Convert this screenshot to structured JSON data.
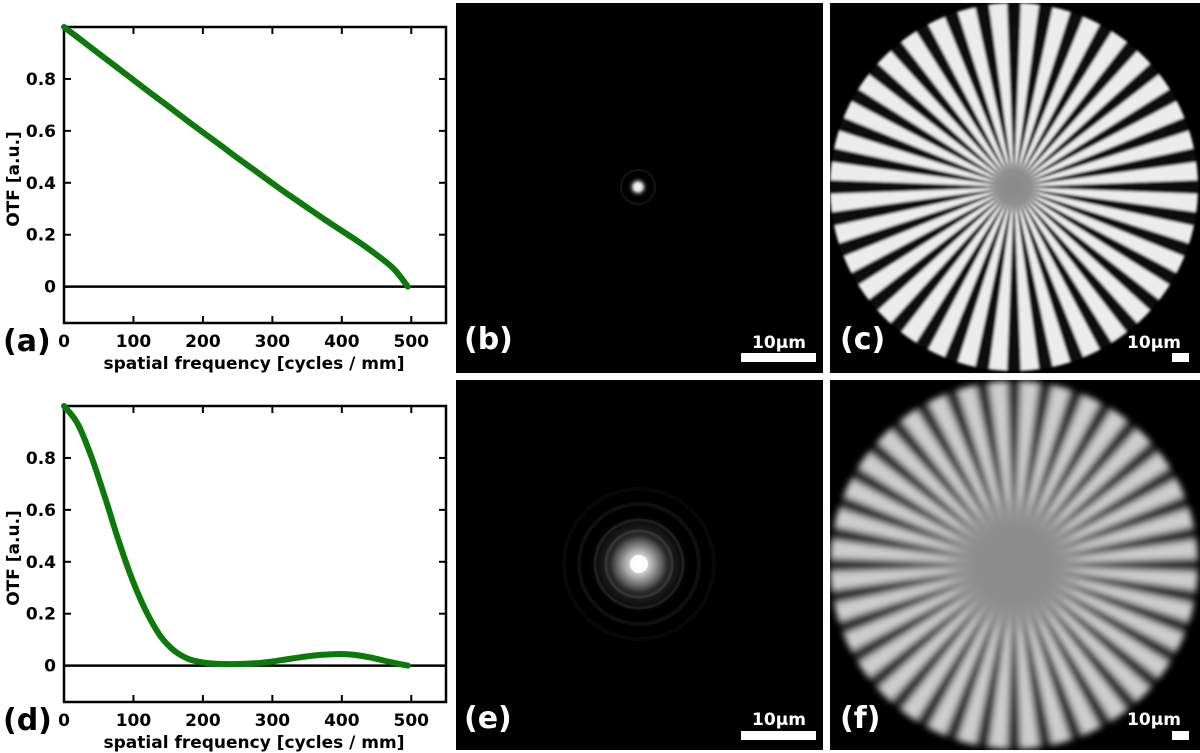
{
  "chart_data": [
    {
      "type": "line",
      "panel_label": "(a)",
      "xlabel": "spatial frequency [cycles / mm]",
      "ylabel": "OTF [a.u.]",
      "xlim": [
        0,
        550
      ],
      "ylim": [
        -0.14,
        1.0
      ],
      "xticks": [
        "0",
        "100",
        "200",
        "300",
        "400",
        "500"
      ],
      "yticks": [
        "0",
        "0.2",
        "0.4",
        "0.6",
        "0.8"
      ],
      "grid": false,
      "series": [
        {
          "color": "#0b7a0b",
          "x": [
            0,
            25,
            50,
            75,
            100,
            125,
            150,
            175,
            200,
            225,
            250,
            275,
            300,
            325,
            350,
            375,
            400,
            425,
            450,
            475,
            495
          ],
          "y": [
            1.0,
            0.949,
            0.898,
            0.847,
            0.796,
            0.745,
            0.695,
            0.644,
            0.594,
            0.545,
            0.495,
            0.447,
            0.398,
            0.351,
            0.305,
            0.259,
            0.215,
            0.171,
            0.123,
            0.068,
            0.0
          ]
        }
      ]
    },
    {
      "type": "line",
      "panel_label": "(d)",
      "xlabel": "spatial frequency [cycles / mm]",
      "ylabel": "OTF [a.u.]",
      "xlim": [
        0,
        550
      ],
      "ylim": [
        -0.14,
        1.0
      ],
      "xticks": [
        "0",
        "100",
        "200",
        "300",
        "400",
        "500"
      ],
      "yticks": [
        "0",
        "0.2",
        "0.4",
        "0.6",
        "0.8"
      ],
      "grid": false,
      "series": [
        {
          "color": "#0b7a0b",
          "x": [
            0,
            20,
            40,
            60,
            80,
            100,
            120,
            140,
            160,
            180,
            200,
            220,
            240,
            260,
            280,
            300,
            320,
            340,
            360,
            380,
            400,
            420,
            440,
            460,
            480,
            495
          ],
          "y": [
            1.0,
            0.93,
            0.8,
            0.64,
            0.47,
            0.32,
            0.2,
            0.11,
            0.055,
            0.025,
            0.012,
            0.007,
            0.006,
            0.007,
            0.01,
            0.016,
            0.024,
            0.032,
            0.039,
            0.043,
            0.045,
            0.041,
            0.032,
            0.02,
            0.008,
            0.0
          ]
        }
      ]
    }
  ],
  "images": {
    "b": {
      "label": "(b)",
      "scalebar": "10µm"
    },
    "c": {
      "label": "(c)",
      "scalebar": "10µm"
    },
    "e": {
      "label": "(e)",
      "scalebar": "10µm"
    },
    "f": {
      "label": "(f)",
      "scalebar": "10µm"
    }
  },
  "colors": {
    "curve": "#0b7a0b",
    "axes": "#000000",
    "image_bg": "#000000"
  }
}
